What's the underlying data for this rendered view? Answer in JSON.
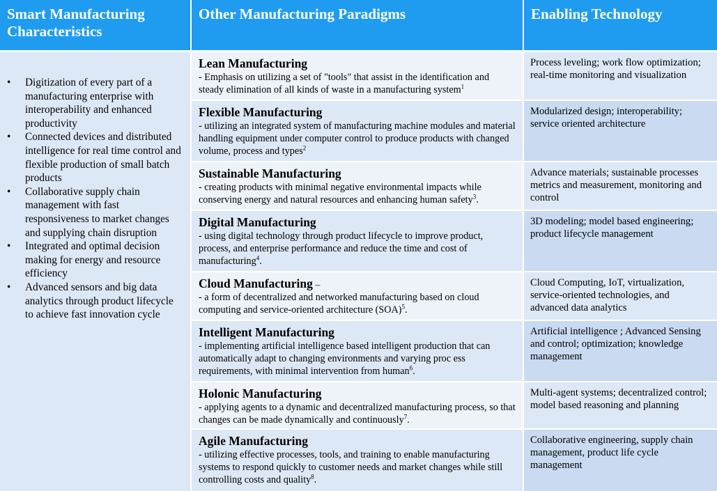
{
  "headers": {
    "col1": "Smart Manufacturing Characteristics",
    "col2": "Other Manufacturing Paradigms",
    "col3": "Enabling Technology"
  },
  "characteristics": [
    "Digitization of every part of a manufacturing enterprise with interoperability and enhanced productivity",
    "Connected devices and distributed intelligence for real time control and flexible production of small batch products",
    "Collaborative supply chain management with fast responsiveness to market changes and supplying chain disruption",
    "Integrated and optimal decision making for energy and resource efficiency",
    "Advanced sensors and big data analytics through product lifecycle to achieve fast innovation cycle"
  ],
  "paradigms": [
    {
      "name": "Lean Manufacturing",
      "dash": "",
      "desc": "- Emphasis on utilizing a set of \"tools\" that assist in the identification and steady elimination of all kinds of waste in a manufacturing system",
      "ref": "1",
      "tail": "",
      "tech": "Process leveling; work flow optimization; real-time monitoring and visualization"
    },
    {
      "name": "Flexible Manufacturing",
      "dash": "",
      "desc": " - utilizing an integrated system of manufacturing machine modules and material handling equipment under computer control to produce products with changed volume,  process and types",
      "ref": "2",
      "tail": "",
      "tech": "Modularized design; interoperability; service oriented architecture"
    },
    {
      "name": "Sustainable Manufacturing",
      "dash": "",
      "desc": "-  creating  products with minimal negative environmental impacts while conserving energy and natural resources and enhancing human safety",
      "ref": "3",
      "tail": ".",
      "tech": "Advance materials; sustainable processes metrics and measurement, monitoring and control"
    },
    {
      "name": "Digital Manufacturing",
      "dash": "",
      "desc": "- using digital technology through product lifecycle to improve product, process, and enterprise performance and reduce the time and cost of manufacturing",
      "ref": "4",
      "tail": ".",
      "tech": "3D modeling; model based engineering; product lifecycle management"
    },
    {
      "name": "Cloud Manufacturing",
      "dash": " –",
      "desc": "-   a form of decentralized and networked manufacturing based on cloud computing and service-oriented architecture (SOA)",
      "ref": "5",
      "tail": ".",
      "tech": "Cloud Computing,  IoT, virtualization, service-oriented technologies, and advanced data analytics"
    },
    {
      "name": "Intelligent Manufacturing",
      "dash": "",
      "desc": "- implementing artificial intelligence based intelligent production that can automatically adapt to changing environments and varying proc ess requirements, with minimal intervention from human",
      "ref": "6",
      "tail": ".",
      "tech": "Artificial intelligence ; Advanced Sensing and control; optimization; knowledge management"
    },
    {
      "name": "Holonic Manufacturing",
      "dash": "",
      "desc": "- applying agents to a dynamic and decentralized manufacturing process, so that changes can be made dynamically and continuously",
      "ref": "7",
      "tail": ".",
      "tech": "Multi-agent systems; decentralized control; model based reasoning and planning"
    },
    {
      "name": "Agile Manufacturing",
      "dash": "",
      "desc": "-  utilizing effective processes, tools, and training to enable manufacturing systems to respond quickly to customer needs and market changes while still controlling costs and quality",
      "ref": "8",
      "tail": ".",
      "tech": "Collaborative engineering, supply chain management, product life cycle management"
    }
  ]
}
